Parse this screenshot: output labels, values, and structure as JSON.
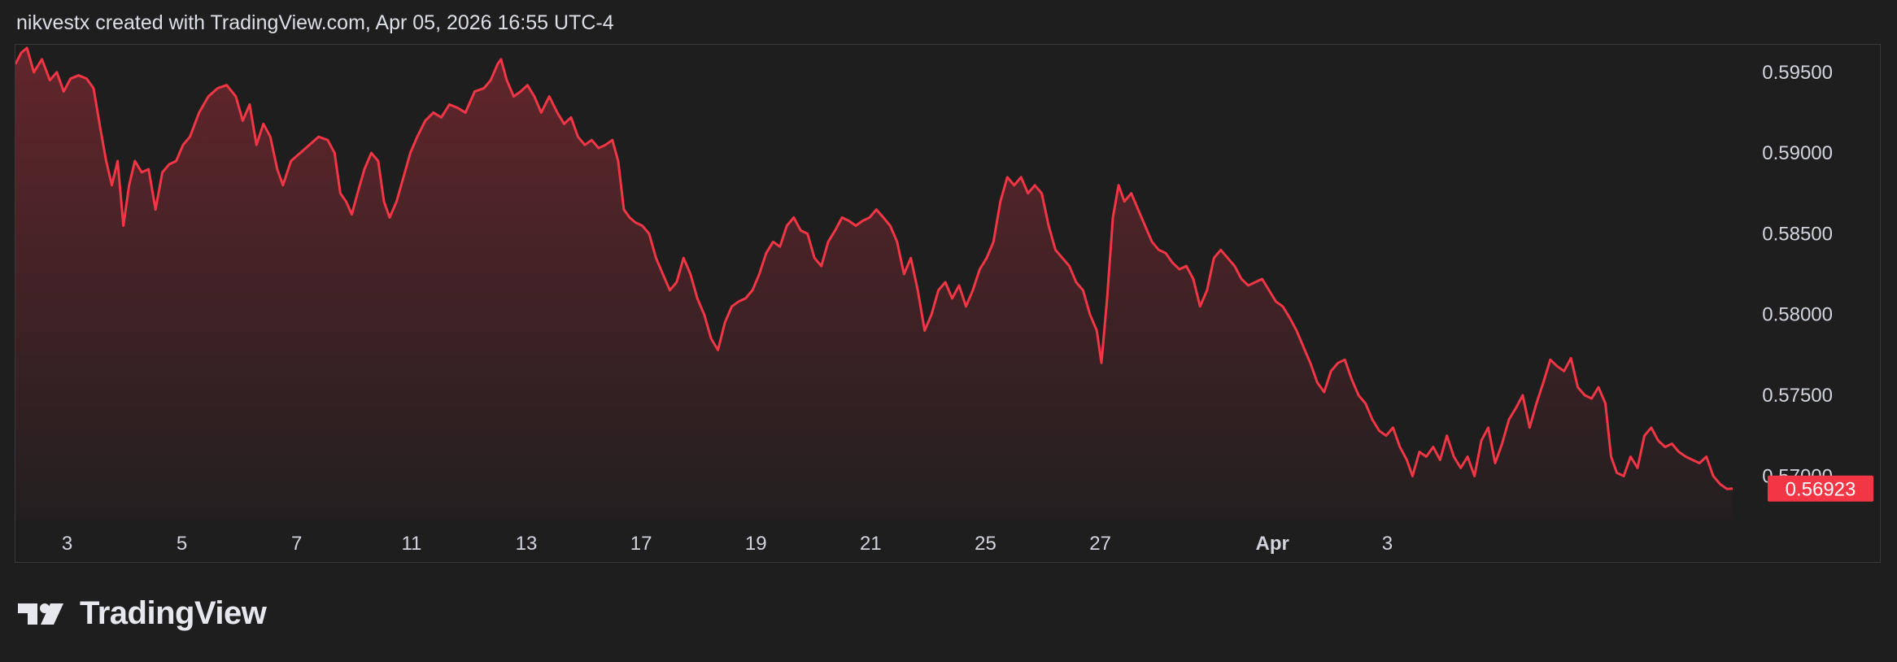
{
  "header": {
    "attribution": "nikvestx created with TradingView.com, Apr 05, 2026 16:55 UTC-4"
  },
  "brand": {
    "logo_text": "TradingView",
    "logo_icon": "tradingview-logo-icon"
  },
  "colors": {
    "background": "#1e1e1f",
    "line": "#f23645",
    "last_price_label_bg": "#f23645",
    "axis_text": "#d1d4dc",
    "border": "#3a3a3d"
  },
  "chart_data": {
    "type": "area",
    "title": "",
    "xlabel": "",
    "ylabel": "",
    "grid": false,
    "y_axis_position": "right",
    "ylim": [
      0.5673,
      0.5967
    ],
    "y_ticks": [
      "0.59500",
      "0.59000",
      "0.58500",
      "0.58000",
      "0.57500",
      "0.57000"
    ],
    "x_ticks": [
      {
        "label": "3",
        "x": 4.5
      },
      {
        "label": "5",
        "x": 14.5
      },
      {
        "label": "7",
        "x": 24.5
      },
      {
        "label": "11",
        "x": 34.5
      },
      {
        "label": "13",
        "x": 44.5
      },
      {
        "label": "17",
        "x": 54.5
      },
      {
        "label": "19",
        "x": 64.5
      },
      {
        "label": "21",
        "x": 74.5
      },
      {
        "label": "25",
        "x": 84.5
      },
      {
        "label": "27",
        "x": 94.5
      },
      {
        "label": "Apr",
        "x": 109.5,
        "bold": true
      },
      {
        "label": "3",
        "x": 119.5
      }
    ],
    "last_price_label": "0.56923",
    "series": [
      {
        "values": [
          [
            0,
            0.5955
          ],
          [
            0.5,
            0.5962
          ],
          [
            1,
            0.5965
          ],
          [
            1.6,
            0.595
          ],
          [
            2.3,
            0.5958
          ],
          [
            3,
            0.5945
          ],
          [
            3.6,
            0.595
          ],
          [
            4.2,
            0.5938
          ],
          [
            4.8,
            0.5946
          ],
          [
            5.5,
            0.5948
          ],
          [
            6.2,
            0.5946
          ],
          [
            6.8,
            0.594
          ],
          [
            7.4,
            0.5915
          ],
          [
            7.9,
            0.5895
          ],
          [
            8.4,
            0.588
          ],
          [
            8.9,
            0.5895
          ],
          [
            9.4,
            0.5855
          ],
          [
            9.9,
            0.588
          ],
          [
            10.4,
            0.5895
          ],
          [
            11,
            0.5888
          ],
          [
            11.6,
            0.589
          ],
          [
            12.2,
            0.5865
          ],
          [
            12.8,
            0.5888
          ],
          [
            13.4,
            0.5893
          ],
          [
            14,
            0.5895
          ],
          [
            14.6,
            0.5905
          ],
          [
            15.2,
            0.591
          ],
          [
            16,
            0.5925
          ],
          [
            16.8,
            0.5935
          ],
          [
            17.6,
            0.594
          ],
          [
            18.4,
            0.5942
          ],
          [
            19.2,
            0.5935
          ],
          [
            19.8,
            0.592
          ],
          [
            20.4,
            0.593
          ],
          [
            21,
            0.5905
          ],
          [
            21.6,
            0.5918
          ],
          [
            22.2,
            0.591
          ],
          [
            22.8,
            0.589
          ],
          [
            23.3,
            0.588
          ],
          [
            24,
            0.5895
          ],
          [
            24.8,
            0.59
          ],
          [
            25.6,
            0.5905
          ],
          [
            26.4,
            0.591
          ],
          [
            27.2,
            0.5908
          ],
          [
            27.8,
            0.59
          ],
          [
            28.3,
            0.5875
          ],
          [
            28.8,
            0.587
          ],
          [
            29.3,
            0.5862
          ],
          [
            29.8,
            0.5875
          ],
          [
            30.4,
            0.589
          ],
          [
            31,
            0.59
          ],
          [
            31.6,
            0.5895
          ],
          [
            32.1,
            0.587
          ],
          [
            32.6,
            0.586
          ],
          [
            33.2,
            0.587
          ],
          [
            33.8,
            0.5885
          ],
          [
            34.4,
            0.59
          ],
          [
            35,
            0.591
          ],
          [
            35.7,
            0.592
          ],
          [
            36.4,
            0.5925
          ],
          [
            37.1,
            0.5922
          ],
          [
            37.8,
            0.593
          ],
          [
            38.5,
            0.5928
          ],
          [
            39.2,
            0.5925
          ],
          [
            40,
            0.5938
          ],
          [
            40.8,
            0.594
          ],
          [
            41.4,
            0.5945
          ],
          [
            42,
            0.5955
          ],
          [
            42.3,
            0.5958
          ],
          [
            42.8,
            0.5945
          ],
          [
            43.4,
            0.5935
          ],
          [
            44,
            0.5938
          ],
          [
            44.6,
            0.5942
          ],
          [
            45.2,
            0.5935
          ],
          [
            45.8,
            0.5925
          ],
          [
            46.5,
            0.5935
          ],
          [
            47.2,
            0.5925
          ],
          [
            47.8,
            0.5918
          ],
          [
            48.4,
            0.5922
          ],
          [
            49,
            0.591
          ],
          [
            49.6,
            0.5905
          ],
          [
            50.2,
            0.5908
          ],
          [
            50.8,
            0.5903
          ],
          [
            51.4,
            0.5905
          ],
          [
            52,
            0.5908
          ],
          [
            52.5,
            0.5895
          ],
          [
            53,
            0.5865
          ],
          [
            53.5,
            0.586
          ],
          [
            54,
            0.5857
          ],
          [
            54.6,
            0.5855
          ],
          [
            55.2,
            0.585
          ],
          [
            55.8,
            0.5835
          ],
          [
            56.4,
            0.5825
          ],
          [
            57,
            0.5815
          ],
          [
            57.6,
            0.582
          ],
          [
            58.2,
            0.5835
          ],
          [
            58.8,
            0.5825
          ],
          [
            59.4,
            0.581
          ],
          [
            60,
            0.58
          ],
          [
            60.6,
            0.5785
          ],
          [
            61.2,
            0.5778
          ],
          [
            61.8,
            0.5795
          ],
          [
            62.4,
            0.5805
          ],
          [
            63,
            0.5808
          ],
          [
            63.6,
            0.581
          ],
          [
            64.2,
            0.5815
          ],
          [
            64.8,
            0.5825
          ],
          [
            65.4,
            0.5838
          ],
          [
            66,
            0.5845
          ],
          [
            66.6,
            0.5842
          ],
          [
            67.2,
            0.5855
          ],
          [
            67.8,
            0.586
          ],
          [
            68.4,
            0.5852
          ],
          [
            69,
            0.585
          ],
          [
            69.6,
            0.5835
          ],
          [
            70.2,
            0.583
          ],
          [
            70.8,
            0.5845
          ],
          [
            71.4,
            0.5852
          ],
          [
            72,
            0.586
          ],
          [
            72.6,
            0.5858
          ],
          [
            73.2,
            0.5855
          ],
          [
            73.8,
            0.5858
          ],
          [
            74.4,
            0.586
          ],
          [
            75,
            0.5865
          ],
          [
            75.6,
            0.586
          ],
          [
            76.2,
            0.5855
          ],
          [
            76.8,
            0.5845
          ],
          [
            77.4,
            0.5825
          ],
          [
            78,
            0.5835
          ],
          [
            78.6,
            0.5815
          ],
          [
            79.2,
            0.579
          ],
          [
            79.8,
            0.58
          ],
          [
            80.4,
            0.5815
          ],
          [
            81,
            0.582
          ],
          [
            81.6,
            0.581
          ],
          [
            82.2,
            0.5818
          ],
          [
            82.8,
            0.5805
          ],
          [
            83.4,
            0.5815
          ],
          [
            84,
            0.5828
          ],
          [
            84.6,
            0.5835
          ],
          [
            85.2,
            0.5845
          ],
          [
            85.8,
            0.587
          ],
          [
            86.4,
            0.5885
          ],
          [
            87,
            0.588
          ],
          [
            87.6,
            0.5885
          ],
          [
            88.2,
            0.5875
          ],
          [
            88.8,
            0.588
          ],
          [
            89.4,
            0.5875
          ],
          [
            90,
            0.5855
          ],
          [
            90.6,
            0.584
          ],
          [
            91.2,
            0.5835
          ],
          [
            91.8,
            0.583
          ],
          [
            92.4,
            0.582
          ],
          [
            93,
            0.5815
          ],
          [
            93.6,
            0.58
          ],
          [
            94.2,
            0.579
          ],
          [
            94.6,
            0.577
          ],
          [
            95.1,
            0.581
          ],
          [
            95.6,
            0.586
          ],
          [
            96.1,
            0.588
          ],
          [
            96.6,
            0.587
          ],
          [
            97.2,
            0.5875
          ],
          [
            97.8,
            0.5865
          ],
          [
            98.4,
            0.5855
          ],
          [
            99,
            0.5845
          ],
          [
            99.6,
            0.584
          ],
          [
            100.2,
            0.5838
          ],
          [
            100.8,
            0.5832
          ],
          [
            101.4,
            0.5828
          ],
          [
            102,
            0.583
          ],
          [
            102.6,
            0.5822
          ],
          [
            103.2,
            0.5805
          ],
          [
            103.8,
            0.5815
          ],
          [
            104.4,
            0.5835
          ],
          [
            105,
            0.584
          ],
          [
            105.6,
            0.5835
          ],
          [
            106.2,
            0.583
          ],
          [
            106.8,
            0.5822
          ],
          [
            107.4,
            0.5818
          ],
          [
            108,
            0.582
          ],
          [
            108.6,
            0.5822
          ],
          [
            109.2,
            0.5815
          ],
          [
            109.8,
            0.5808
          ],
          [
            110.4,
            0.5805
          ],
          [
            111,
            0.5798
          ],
          [
            111.6,
            0.579
          ],
          [
            112.2,
            0.578
          ],
          [
            112.8,
            0.577
          ],
          [
            113.4,
            0.5758
          ],
          [
            114,
            0.5752
          ],
          [
            114.6,
            0.5765
          ],
          [
            115.2,
            0.577
          ],
          [
            115.8,
            0.5772
          ],
          [
            116.4,
            0.576
          ],
          [
            117,
            0.575
          ],
          [
            117.6,
            0.5745
          ],
          [
            118.2,
            0.5735
          ],
          [
            118.8,
            0.5728
          ],
          [
            119.4,
            0.5725
          ],
          [
            120,
            0.573
          ],
          [
            120.6,
            0.5718
          ],
          [
            121.2,
            0.571
          ],
          [
            121.7,
            0.57
          ],
          [
            122.3,
            0.5715
          ],
          [
            122.9,
            0.5712
          ],
          [
            123.5,
            0.5718
          ],
          [
            124.1,
            0.571
          ],
          [
            124.7,
            0.5725
          ],
          [
            125.3,
            0.5712
          ],
          [
            125.9,
            0.5705
          ],
          [
            126.5,
            0.5712
          ],
          [
            127.1,
            0.57
          ],
          [
            127.7,
            0.5722
          ],
          [
            128.3,
            0.573
          ],
          [
            128.9,
            0.5708
          ],
          [
            129.5,
            0.572
          ],
          [
            130.1,
            0.5735
          ],
          [
            130.7,
            0.5742
          ],
          [
            131.3,
            0.575
          ],
          [
            131.9,
            0.573
          ],
          [
            132.5,
            0.5745
          ],
          [
            133.1,
            0.5758
          ],
          [
            133.7,
            0.5772
          ],
          [
            134.3,
            0.5768
          ],
          [
            134.9,
            0.5765
          ],
          [
            135.5,
            0.5773
          ],
          [
            136.1,
            0.5755
          ],
          [
            136.7,
            0.575
          ],
          [
            137.3,
            0.5748
          ],
          [
            137.9,
            0.5755
          ],
          [
            138.5,
            0.5745
          ],
          [
            139,
            0.5712
          ],
          [
            139.5,
            0.5702
          ],
          [
            140.1,
            0.57
          ],
          [
            140.7,
            0.5712
          ],
          [
            141.3,
            0.5705
          ],
          [
            141.9,
            0.5725
          ],
          [
            142.5,
            0.573
          ],
          [
            143.1,
            0.5722
          ],
          [
            143.7,
            0.5718
          ],
          [
            144.3,
            0.572
          ],
          [
            144.9,
            0.5715
          ],
          [
            145.5,
            0.5712
          ],
          [
            146.1,
            0.571
          ],
          [
            146.7,
            0.5708
          ],
          [
            147.3,
            0.5712
          ],
          [
            147.9,
            0.57
          ],
          [
            148.5,
            0.5695
          ],
          [
            149.1,
            0.5692
          ],
          [
            149.6,
            0.56923
          ]
        ]
      }
    ],
    "xlim": [
      0,
      152
    ]
  }
}
